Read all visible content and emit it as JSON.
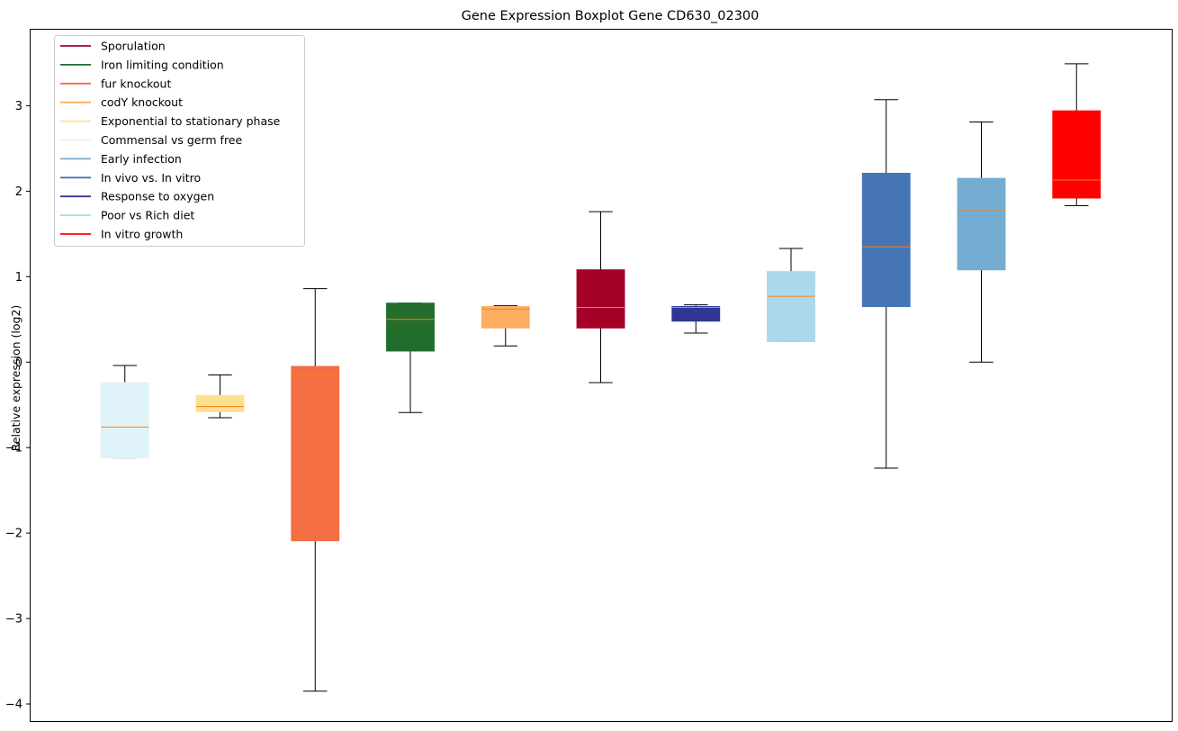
{
  "chart_data": {
    "type": "boxplot",
    "title": "Gene Expression Boxplot Gene CD630_02300",
    "xlabel": "",
    "ylabel": "Relative expression (log2)",
    "ylim": [
      -4.2,
      3.9
    ],
    "yticks": [
      -4,
      -3,
      -2,
      -1,
      0,
      1,
      2,
      3
    ],
    "ytick_labels": [
      "−4",
      "−3",
      "−2",
      "−1",
      "0",
      "1",
      "2",
      "3"
    ],
    "grid": false,
    "legend_position": "top-left",
    "legend": [
      {
        "label": "Sporulation",
        "color": "#a50026"
      },
      {
        "label": "Iron limiting condition",
        "color": "#226d2c"
      },
      {
        "label": "fur knockout",
        "color": "#f46d43"
      },
      {
        "label": "codY knockout",
        "color": "#fdae61"
      },
      {
        "label": "Exponential to stationary phase",
        "color": "#fee090"
      },
      {
        "label": "Commensal vs germ free",
        "color": "#e0f3f8"
      },
      {
        "label": "Early infection",
        "color": "#74add1"
      },
      {
        "label": "In vivo vs. In vitro",
        "color": "#4575b4"
      },
      {
        "label": "Response to oxygen",
        "color": "#313695"
      },
      {
        "label": "Poor vs Rich diet",
        "color": "#abd9e9"
      },
      {
        "label": "In vitro growth",
        "color": "#ff0000"
      }
    ],
    "median_color": "#ff7f0e",
    "boxes": [
      {
        "condition": "Commensal vs germ free",
        "color": "#e0f3f8",
        "whisker_low": -1.12,
        "q1": -1.12,
        "median": -0.76,
        "q3": -0.24,
        "whisker_high": -0.04
      },
      {
        "condition": "Exponential to stationary phase",
        "color": "#fee090",
        "whisker_low": -0.65,
        "q1": -0.58,
        "median": -0.52,
        "q3": -0.39,
        "whisker_high": -0.15
      },
      {
        "condition": "fur knockout",
        "color": "#f46d43",
        "whisker_low": -3.85,
        "q1": -2.09,
        "median": -0.15,
        "q3": -0.05,
        "whisker_high": 0.86
      },
      {
        "condition": "Iron limiting condition",
        "color": "#226d2c",
        "whisker_low": -0.59,
        "q1": 0.13,
        "median": 0.5,
        "q3": 0.69,
        "whisker_high": 0.69
      },
      {
        "condition": "codY knockout",
        "color": "#fdae61",
        "whisker_low": 0.19,
        "q1": 0.4,
        "median": 0.62,
        "q3": 0.65,
        "whisker_high": 0.66
      },
      {
        "condition": "Sporulation",
        "color": "#a50026",
        "whisker_low": -0.24,
        "q1": 0.4,
        "median": 0.64,
        "q3": 1.08,
        "whisker_high": 1.76
      },
      {
        "condition": "Response to oxygen",
        "color": "#313695",
        "whisker_low": 0.34,
        "q1": 0.48,
        "median": 0.64,
        "q3": 0.65,
        "whisker_high": 0.67
      },
      {
        "condition": "Poor vs Rich diet",
        "color": "#abd9e9",
        "whisker_low": 0.24,
        "q1": 0.24,
        "median": 0.77,
        "q3": 1.06,
        "whisker_high": 1.33
      },
      {
        "condition": "In vivo vs. In vitro",
        "color": "#4575b4",
        "whisker_low": -1.24,
        "q1": 0.65,
        "median": 1.35,
        "q3": 2.21,
        "whisker_high": 3.07
      },
      {
        "condition": "Early infection",
        "color": "#74add1",
        "whisker_low": 0.0,
        "q1": 1.08,
        "median": 1.77,
        "q3": 2.15,
        "whisker_high": 2.81
      },
      {
        "condition": "In vitro growth",
        "color": "#ff0000",
        "whisker_low": 1.83,
        "q1": 1.92,
        "median": 2.13,
        "q3": 2.94,
        "whisker_high": 3.49
      }
    ]
  }
}
